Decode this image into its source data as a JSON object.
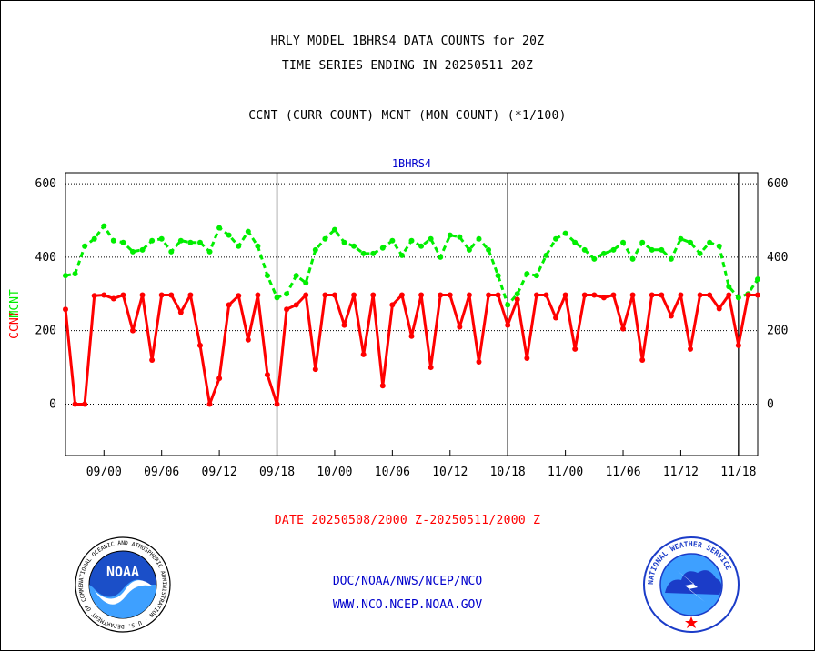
{
  "header": {
    "line1": "HRLY MODEL 1BHRS4 DATA COUNTS for 20Z",
    "line2": "TIME SERIES ENDING IN 20250511 20Z",
    "line3": "CCNT (CURR COUNT) MCNT (MON COUNT) (*1/100)"
  },
  "date_range": "DATE 20250508/2000 Z-20250511/2000 Z",
  "footer": {
    "org": "DOC/NOAA/NWS/NCEP/NCO",
    "url": "WWW.NCO.NCEP.NOAA.GOV"
  },
  "logos": {
    "left": "NOAA",
    "left_ring": "NATIONAL OCEANIC AND ATMOSPHERIC ADMINISTRATION · U.S. DEPARTMENT OF COMMERCE",
    "right_ring": "NATIONAL WEATHER SERVICE"
  },
  "colors": {
    "ccnt": "#ff0000",
    "mcnt": "#00ee00",
    "label_blue": "#0000cc"
  },
  "chart_data": {
    "type": "line",
    "title": "1BHRS4",
    "ylabel_ccnt": "CCNT",
    "ylabel_mcnt": "MCNT",
    "ylim": [
      -140,
      630
    ],
    "yticks": [
      0,
      200,
      400,
      600
    ],
    "x_tick_labels": [
      "09/00",
      "09/06",
      "09/12",
      "09/18",
      "10/00",
      "10/06",
      "10/12",
      "10/18",
      "11/00",
      "11/06",
      "11/12",
      "11/18"
    ],
    "x_tick_hour_index": [
      4,
      10,
      16,
      22,
      28,
      34,
      40,
      46,
      52,
      58,
      64,
      70
    ],
    "day_boundaries_hour_index": [
      22,
      46,
      70
    ],
    "grid": "horizontal dotted",
    "legend": "none",
    "series": [
      {
        "name": "CCNT",
        "color": "#ff0000",
        "values": [
          258,
          0,
          0,
          295,
          297,
          287,
          297,
          200,
          297,
          120,
          297,
          297,
          250,
          297,
          160,
          0,
          70,
          270,
          295,
          175,
          297,
          80,
          0,
          258,
          270,
          297,
          95,
          297,
          297,
          215,
          297,
          135,
          297,
          50,
          270,
          297,
          185,
          297,
          100,
          297,
          297,
          210,
          297,
          115,
          297,
          297,
          215,
          285,
          125,
          297,
          297,
          235,
          297,
          150,
          297,
          297,
          290,
          297,
          205,
          297,
          120,
          297,
          297,
          240,
          297,
          150,
          297,
          297,
          260,
          297,
          160,
          297,
          297
        ]
      },
      {
        "name": "MCNT",
        "color": "#00ee00",
        "values": [
          350,
          355,
          430,
          450,
          485,
          445,
          440,
          415,
          420,
          445,
          450,
          415,
          445,
          440,
          440,
          415,
          480,
          460,
          430,
          470,
          430,
          350,
          290,
          300,
          350,
          330,
          420,
          450,
          475,
          440,
          430,
          410,
          410,
          425,
          445,
          405,
          445,
          430,
          450,
          400,
          460,
          455,
          420,
          450,
          420,
          350,
          270,
          300,
          355,
          350,
          405,
          450,
          465,
          440,
          420,
          395,
          410,
          420,
          440,
          395,
          440,
          420,
          420,
          395,
          450,
          440,
          410,
          440,
          430,
          320,
          290,
          300,
          340
        ]
      }
    ]
  }
}
